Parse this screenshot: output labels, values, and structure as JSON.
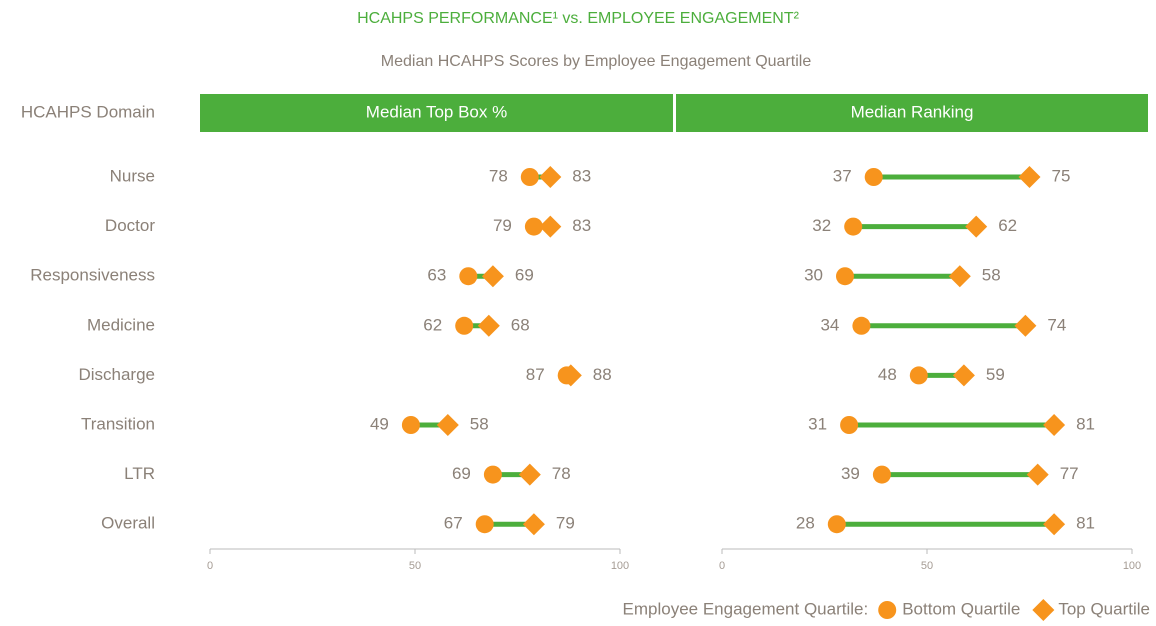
{
  "chart_data": [
    {
      "type": "dumbbell",
      "title": "HCAHPS PERFORMANCE¹ vs. EMPLOYEE ENGAGEMENT²",
      "subtitle": "Median HCAHPS Scores by Employee Engagement Quartile",
      "category_label": "HCAHPS Domain",
      "panel_title": "Median Top Box %",
      "categories": [
        "Nurse",
        "Doctor",
        "Responsiveness",
        "Medicine",
        "Discharge",
        "Transition",
        "LTR",
        "Overall"
      ],
      "legend_title": "Employee Engagement Quartile:",
      "series": [
        {
          "name": "Bottom Quartile",
          "color": "#f7941d",
          "marker": "circle",
          "values": [
            78,
            79,
            63,
            62,
            87,
            49,
            69,
            67
          ]
        },
        {
          "name": "Top Quartile",
          "color": "#f7941d",
          "marker": "diamond",
          "values": [
            83,
            83,
            69,
            68,
            88,
            58,
            78,
            79
          ]
        }
      ],
      "line_color": "#4cae3c",
      "xlim": [
        0,
        100
      ],
      "xticks": [
        0,
        50,
        100
      ]
    },
    {
      "type": "dumbbell",
      "panel_title": "Median Ranking",
      "series": [
        {
          "color": "#f7941d",
          "marker": "circle",
          "values": [
            37,
            32,
            30,
            34,
            48,
            31,
            39,
            28
          ]
        },
        {
          "color": "#f7941d",
          "marker": "diamond",
          "values": [
            75,
            62,
            58,
            74,
            59,
            81,
            77,
            81
          ]
        }
      ],
      "line_color": "#4cae3c",
      "xlim": [
        0,
        100
      ],
      "xticks": [
        0,
        50,
        100
      ]
    }
  ]
}
